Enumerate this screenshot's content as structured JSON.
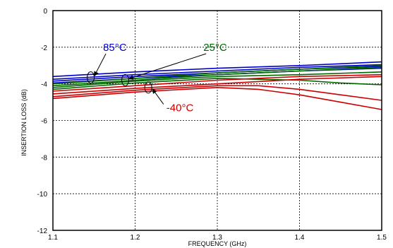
{
  "chart_data": {
    "type": "line",
    "xlabel": "FREQUENCY (GHz)",
    "ylabel": "INSERTION LOSS (dB)",
    "xlim": [
      1.1,
      1.5
    ],
    "ylim": [
      -12,
      0
    ],
    "x_ticks": [
      1.1,
      1.2,
      1.3,
      1.4,
      1.5
    ],
    "x_tick_labels": [
      "1.1",
      "1.2",
      "1.3",
      "1.4",
      "1.5"
    ],
    "y_ticks": [
      0,
      -2,
      -4,
      -6,
      -8,
      -10,
      -12
    ],
    "y_tick_labels": [
      "0",
      "-2",
      "-4",
      "-6",
      "-8",
      "-10",
      "-12"
    ],
    "grid": true,
    "grid_style": "dotted",
    "colors": {
      "hot": "#0000cc",
      "room": "#006600",
      "cold": "#cc0000"
    },
    "series": [
      {
        "group": "hot",
        "x": [
          1.1,
          1.2,
          1.3,
          1.4,
          1.5
        ],
        "y": [
          -3.6,
          -3.35,
          -3.15,
          -3.0,
          -2.8
        ]
      },
      {
        "group": "hot",
        "x": [
          1.1,
          1.2,
          1.3,
          1.4,
          1.5
        ],
        "y": [
          -3.75,
          -3.5,
          -3.3,
          -3.1,
          -2.95
        ]
      },
      {
        "group": "hot",
        "x": [
          1.1,
          1.2,
          1.3,
          1.4,
          1.5
        ],
        "y": [
          -3.85,
          -3.6,
          -3.4,
          -3.2,
          -3.05
        ]
      },
      {
        "group": "hot",
        "x": [
          1.1,
          1.2,
          1.3,
          1.4,
          1.5
        ],
        "y": [
          -3.95,
          -3.7,
          -3.5,
          -3.3,
          -3.15
        ]
      },
      {
        "group": "room",
        "x": [
          1.1,
          1.2,
          1.3,
          1.4,
          1.5
        ],
        "y": [
          -4.0,
          -3.7,
          -3.4,
          -3.2,
          -3.0
        ]
      },
      {
        "group": "room",
        "x": [
          1.1,
          1.2,
          1.3,
          1.4,
          1.5
        ],
        "y": [
          -4.1,
          -3.8,
          -3.5,
          -3.3,
          -3.1
        ]
      },
      {
        "group": "room",
        "x": [
          1.1,
          1.2,
          1.3,
          1.4,
          1.5
        ],
        "y": [
          -4.2,
          -3.85,
          -3.6,
          -3.5,
          -3.35
        ]
      },
      {
        "group": "room",
        "x": [
          1.1,
          1.2,
          1.3,
          1.4,
          1.45,
          1.5
        ],
        "y": [
          -4.3,
          -3.95,
          -3.7,
          -3.8,
          -3.95,
          -4.05
        ]
      },
      {
        "group": "cold",
        "x": [
          1.1,
          1.2,
          1.3,
          1.4,
          1.5
        ],
        "y": [
          -4.4,
          -4.1,
          -3.8,
          -3.6,
          -3.5
        ]
      },
      {
        "group": "cold",
        "x": [
          1.1,
          1.2,
          1.3,
          1.4,
          1.5
        ],
        "y": [
          -4.55,
          -4.25,
          -4.0,
          -3.75,
          -3.6
        ]
      },
      {
        "group": "cold",
        "x": [
          1.1,
          1.2,
          1.3,
          1.35,
          1.4,
          1.45,
          1.5
        ],
        "y": [
          -4.7,
          -4.35,
          -4.1,
          -4.1,
          -4.3,
          -4.6,
          -4.9
        ]
      },
      {
        "group": "cold",
        "x": [
          1.1,
          1.2,
          1.3,
          1.35,
          1.4,
          1.45,
          1.5
        ],
        "y": [
          -4.8,
          -4.45,
          -4.2,
          -4.3,
          -4.6,
          -5.0,
          -5.4
        ]
      }
    ],
    "annotations": [
      {
        "text": "85°C",
        "group": "hot",
        "x": 1.161,
        "y": -2.2,
        "marker_x": 1.146,
        "marker_y": -3.65
      },
      {
        "text": "25°C",
        "group": "room",
        "x": 1.283,
        "y": -2.2,
        "marker_x": 1.188,
        "marker_y": -3.8
      },
      {
        "text": "-40°C",
        "group": "cold",
        "x": 1.238,
        "y": -5.5,
        "marker_x": 1.216,
        "marker_y": -4.2
      }
    ]
  }
}
